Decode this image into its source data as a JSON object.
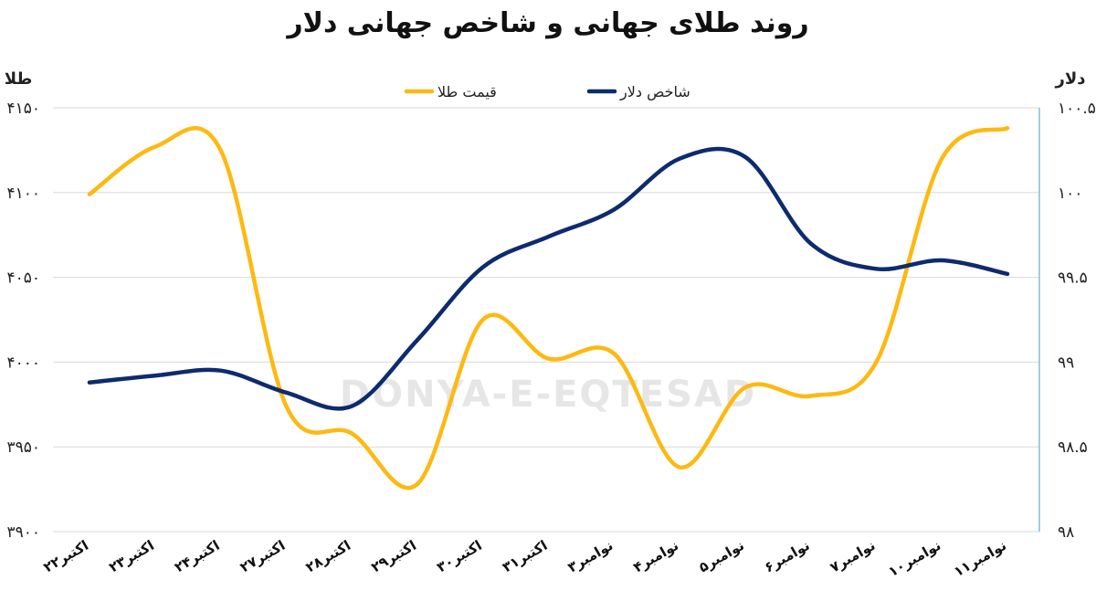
{
  "chart_data": {
    "type": "line",
    "title": "روند طلای جهانی و شاخص جهانی دلار",
    "watermark": "DONYA-E-EQTESAD",
    "categories": [
      "۲۲اکتبر",
      "۲۳اکتبر",
      "۲۴اکتبر",
      "۲۷اکتبر",
      "۲۸اکتبر",
      "۲۹اکتبر",
      "۳۰اکتبر",
      "۳۱اکتبر",
      "۳نوامبر",
      "۴نوامبر",
      "۵نوامبر",
      "۶نوامبر",
      "۷نوامبر",
      "۱۰نوامبر",
      "۱۱نوامبر"
    ],
    "left_axis": {
      "label": "طلا",
      "ylim": [
        3900,
        4150
      ],
      "ticks": [
        3900,
        3950,
        4000,
        4050,
        4100,
        4150
      ],
      "tick_labels": [
        "۳۹۰۰",
        "۳۹۵۰",
        "۴۰۰۰",
        "۴۰۵۰",
        "۴۱۰۰",
        "۴۱۵۰"
      ]
    },
    "right_axis": {
      "label": "دلار",
      "ylim": [
        98,
        100.5
      ],
      "ticks": [
        98,
        98.5,
        99,
        99.5,
        100,
        100.5
      ],
      "tick_labels": [
        "۹۸",
        "۹۸.۵",
        "۹۹",
        "۹۹.۵",
        "۱۰۰",
        "۱۰۰.۵"
      ]
    },
    "grid": true,
    "legend_position": "top-center",
    "series": [
      {
        "name": "قیمت طلا",
        "axis": "left",
        "color": "#FDB913",
        "values": [
          4099,
          4127,
          4125,
          3974,
          3958,
          3928,
          4025,
          4002,
          4005,
          3938,
          3985,
          3980,
          4000,
          4120,
          4138
        ]
      },
      {
        "name": "شاخص دلار",
        "axis": "right",
        "color": "#0D2B6E",
        "values": [
          98.88,
          98.92,
          98.95,
          98.82,
          98.74,
          99.13,
          99.56,
          99.74,
          99.9,
          100.2,
          100.21,
          99.7,
          99.55,
          99.6,
          99.52
        ]
      }
    ]
  }
}
